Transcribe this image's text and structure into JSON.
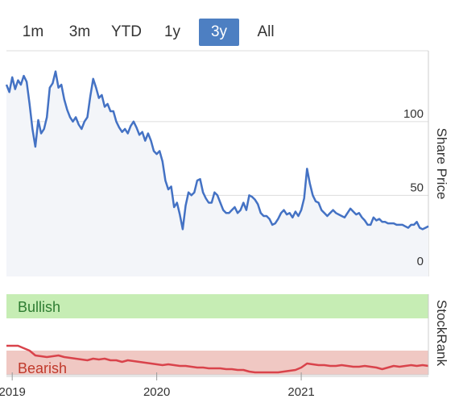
{
  "range_buttons": [
    {
      "label": "1m",
      "active": false
    },
    {
      "label": "3m",
      "active": false
    },
    {
      "label": "YTD",
      "active": false
    },
    {
      "label": "1y",
      "active": false
    },
    {
      "label": "3y",
      "active": true
    },
    {
      "label": "All",
      "active": false
    }
  ],
  "colors": {
    "price_line": "#4472c4",
    "price_fill": "#f3f5f9",
    "bullish_band": "#c6edb4",
    "bullish_text": "#2e7d32",
    "bearish_band": "#f0c8c3",
    "bearish_text": "#c0392b",
    "rank_line": "#d9434b",
    "active_button": "#4d7fc2"
  },
  "chart_data": [
    {
      "type": "line",
      "ylabel": "Share Price",
      "y_ticks": [
        0,
        50,
        100
      ],
      "ylim": [
        -5,
        148
      ],
      "x_ticks": [
        "2019",
        "2020",
        "2021"
      ],
      "series": [
        {
          "points": [
            [
              2018.96,
              125
            ],
            [
              2018.98,
              120
            ],
            [
              2019.0,
              130
            ],
            [
              2019.02,
              122
            ],
            [
              2019.04,
              128
            ],
            [
              2019.06,
              125
            ],
            [
              2019.08,
              131
            ],
            [
              2019.1,
              127
            ],
            [
              2019.12,
              112
            ],
            [
              2019.14,
              95
            ],
            [
              2019.16,
              83
            ],
            [
              2019.18,
              101
            ],
            [
              2019.2,
              92
            ],
            [
              2019.22,
              95
            ],
            [
              2019.24,
              103
            ],
            [
              2019.26,
              123
            ],
            [
              2019.28,
              126
            ],
            [
              2019.3,
              134
            ],
            [
              2019.32,
              123
            ],
            [
              2019.34,
              125
            ],
            [
              2019.36,
              115
            ],
            [
              2019.38,
              108
            ],
            [
              2019.4,
              103
            ],
            [
              2019.42,
              100
            ],
            [
              2019.44,
              103
            ],
            [
              2019.46,
              98
            ],
            [
              2019.48,
              95
            ],
            [
              2019.5,
              100
            ],
            [
              2019.52,
              103
            ],
            [
              2019.54,
              117
            ],
            [
              2019.56,
              129
            ],
            [
              2019.58,
              123
            ],
            [
              2019.6,
              116
            ],
            [
              2019.62,
              118
            ],
            [
              2019.64,
              110
            ],
            [
              2019.66,
              112
            ],
            [
              2019.68,
              107
            ],
            [
              2019.7,
              107
            ],
            [
              2019.72,
              100
            ],
            [
              2019.74,
              96
            ],
            [
              2019.76,
              93
            ],
            [
              2019.78,
              95
            ],
            [
              2019.8,
              92
            ],
            [
              2019.82,
              97
            ],
            [
              2019.84,
              100
            ],
            [
              2019.86,
              96
            ],
            [
              2019.88,
              91
            ],
            [
              2019.9,
              93
            ],
            [
              2019.92,
              87
            ],
            [
              2019.94,
              92
            ],
            [
              2019.96,
              87
            ],
            [
              2019.98,
              80
            ],
            [
              2020.0,
              78
            ],
            [
              2020.02,
              80
            ],
            [
              2020.04,
              73
            ],
            [
              2020.06,
              60
            ],
            [
              2020.08,
              54
            ],
            [
              2020.1,
              56
            ],
            [
              2020.12,
              42
            ],
            [
              2020.14,
              45
            ],
            [
              2020.16,
              37
            ],
            [
              2020.18,
              27
            ],
            [
              2020.2,
              43
            ],
            [
              2020.22,
              52
            ],
            [
              2020.24,
              50
            ],
            [
              2020.26,
              52
            ],
            [
              2020.28,
              60
            ],
            [
              2020.3,
              61
            ],
            [
              2020.32,
              52
            ],
            [
              2020.34,
              48
            ],
            [
              2020.36,
              45
            ],
            [
              2020.38,
              45
            ],
            [
              2020.4,
              52
            ],
            [
              2020.42,
              50
            ],
            [
              2020.44,
              45
            ],
            [
              2020.46,
              40
            ],
            [
              2020.48,
              38
            ],
            [
              2020.5,
              38
            ],
            [
              2020.52,
              40
            ],
            [
              2020.54,
              42
            ],
            [
              2020.56,
              38
            ],
            [
              2020.58,
              40
            ],
            [
              2020.6,
              45
            ],
            [
              2020.62,
              40
            ],
            [
              2020.64,
              50
            ],
            [
              2020.66,
              49
            ],
            [
              2020.68,
              47
            ],
            [
              2020.7,
              44
            ],
            [
              2020.72,
              38
            ],
            [
              2020.74,
              36
            ],
            [
              2020.76,
              36
            ],
            [
              2020.78,
              34
            ],
            [
              2020.8,
              30
            ],
            [
              2020.82,
              31
            ],
            [
              2020.84,
              34
            ],
            [
              2020.86,
              38
            ],
            [
              2020.88,
              40
            ],
            [
              2020.9,
              37
            ],
            [
              2020.92,
              38
            ],
            [
              2020.94,
              35
            ],
            [
              2020.96,
              39
            ],
            [
              2020.98,
              36
            ],
            [
              2021.0,
              40
            ],
            [
              2021.02,
              48
            ],
            [
              2021.04,
              68
            ],
            [
              2021.06,
              58
            ],
            [
              2021.08,
              50
            ],
            [
              2021.1,
              46
            ],
            [
              2021.12,
              45
            ],
            [
              2021.14,
              40
            ],
            [
              2021.16,
              38
            ],
            [
              2021.18,
              36
            ],
            [
              2021.2,
              38
            ],
            [
              2021.22,
              40
            ],
            [
              2021.24,
              38
            ],
            [
              2021.26,
              37
            ],
            [
              2021.28,
              36
            ],
            [
              2021.3,
              35
            ],
            [
              2021.32,
              38
            ],
            [
              2021.34,
              41
            ],
            [
              2021.36,
              39
            ],
            [
              2021.38,
              37
            ],
            [
              2021.4,
              38
            ],
            [
              2021.42,
              35
            ],
            [
              2021.44,
              33
            ],
            [
              2021.46,
              30
            ],
            [
              2021.48,
              30
            ],
            [
              2021.5,
              35
            ],
            [
              2021.52,
              33
            ],
            [
              2021.54,
              34
            ],
            [
              2021.56,
              32
            ],
            [
              2021.58,
              32
            ],
            [
              2021.6,
              31
            ],
            [
              2021.62,
              31
            ],
            [
              2021.64,
              31
            ],
            [
              2021.66,
              30
            ],
            [
              2021.68,
              30
            ],
            [
              2021.7,
              30
            ],
            [
              2021.72,
              29
            ],
            [
              2021.74,
              28
            ],
            [
              2021.76,
              30
            ],
            [
              2021.78,
              30
            ],
            [
              2021.8,
              32
            ],
            [
              2021.82,
              28
            ],
            [
              2021.84,
              27
            ],
            [
              2021.86,
              28
            ],
            [
              2021.88,
              29
            ]
          ]
        }
      ]
    },
    {
      "type": "line",
      "ylabel": "StockRank",
      "zones": [
        {
          "label": "Bullish",
          "from": 70,
          "to": 100
        },
        {
          "label": "Bearish",
          "from": 0,
          "to": 30
        }
      ],
      "ylim": [
        0,
        100
      ],
      "series": [
        {
          "points": [
            [
              2018.96,
              36
            ],
            [
              2019.0,
              36
            ],
            [
              2019.04,
              36
            ],
            [
              2019.08,
              33
            ],
            [
              2019.12,
              30
            ],
            [
              2019.16,
              24
            ],
            [
              2019.2,
              23
            ],
            [
              2019.24,
              22
            ],
            [
              2019.28,
              23
            ],
            [
              2019.32,
              24
            ],
            [
              2019.36,
              22
            ],
            [
              2019.4,
              21
            ],
            [
              2019.44,
              20
            ],
            [
              2019.48,
              19
            ],
            [
              2019.52,
              18
            ],
            [
              2019.56,
              20
            ],
            [
              2019.6,
              19
            ],
            [
              2019.64,
              20
            ],
            [
              2019.68,
              18
            ],
            [
              2019.72,
              18
            ],
            [
              2019.76,
              16
            ],
            [
              2019.8,
              18
            ],
            [
              2019.84,
              17
            ],
            [
              2019.88,
              16
            ],
            [
              2019.92,
              15
            ],
            [
              2019.96,
              14
            ],
            [
              2020.0,
              13
            ],
            [
              2020.04,
              12
            ],
            [
              2020.08,
              13
            ],
            [
              2020.12,
              12
            ],
            [
              2020.16,
              11
            ],
            [
              2020.2,
              11
            ],
            [
              2020.24,
              10
            ],
            [
              2020.28,
              9
            ],
            [
              2020.32,
              9
            ],
            [
              2020.36,
              8
            ],
            [
              2020.4,
              8
            ],
            [
              2020.44,
              8
            ],
            [
              2020.48,
              7
            ],
            [
              2020.52,
              7
            ],
            [
              2020.56,
              6
            ],
            [
              2020.6,
              6
            ],
            [
              2020.64,
              4
            ],
            [
              2020.68,
              3
            ],
            [
              2020.72,
              3
            ],
            [
              2020.76,
              3
            ],
            [
              2020.8,
              3
            ],
            [
              2020.84,
              3
            ],
            [
              2020.88,
              4
            ],
            [
              2020.92,
              5
            ],
            [
              2020.96,
              6
            ],
            [
              2021.0,
              9
            ],
            [
              2021.04,
              14
            ],
            [
              2021.08,
              13
            ],
            [
              2021.12,
              12
            ],
            [
              2021.16,
              12
            ],
            [
              2021.2,
              11
            ],
            [
              2021.24,
              11
            ],
            [
              2021.28,
              12
            ],
            [
              2021.32,
              11
            ],
            [
              2021.36,
              10
            ],
            [
              2021.4,
              10
            ],
            [
              2021.44,
              11
            ],
            [
              2021.48,
              10
            ],
            [
              2021.52,
              9
            ],
            [
              2021.56,
              7
            ],
            [
              2021.6,
              9
            ],
            [
              2021.64,
              11
            ],
            [
              2021.68,
              10
            ],
            [
              2021.72,
              11
            ],
            [
              2021.76,
              12
            ],
            [
              2021.8,
              11
            ],
            [
              2021.84,
              12
            ],
            [
              2021.88,
              11
            ]
          ]
        }
      ]
    }
  ]
}
